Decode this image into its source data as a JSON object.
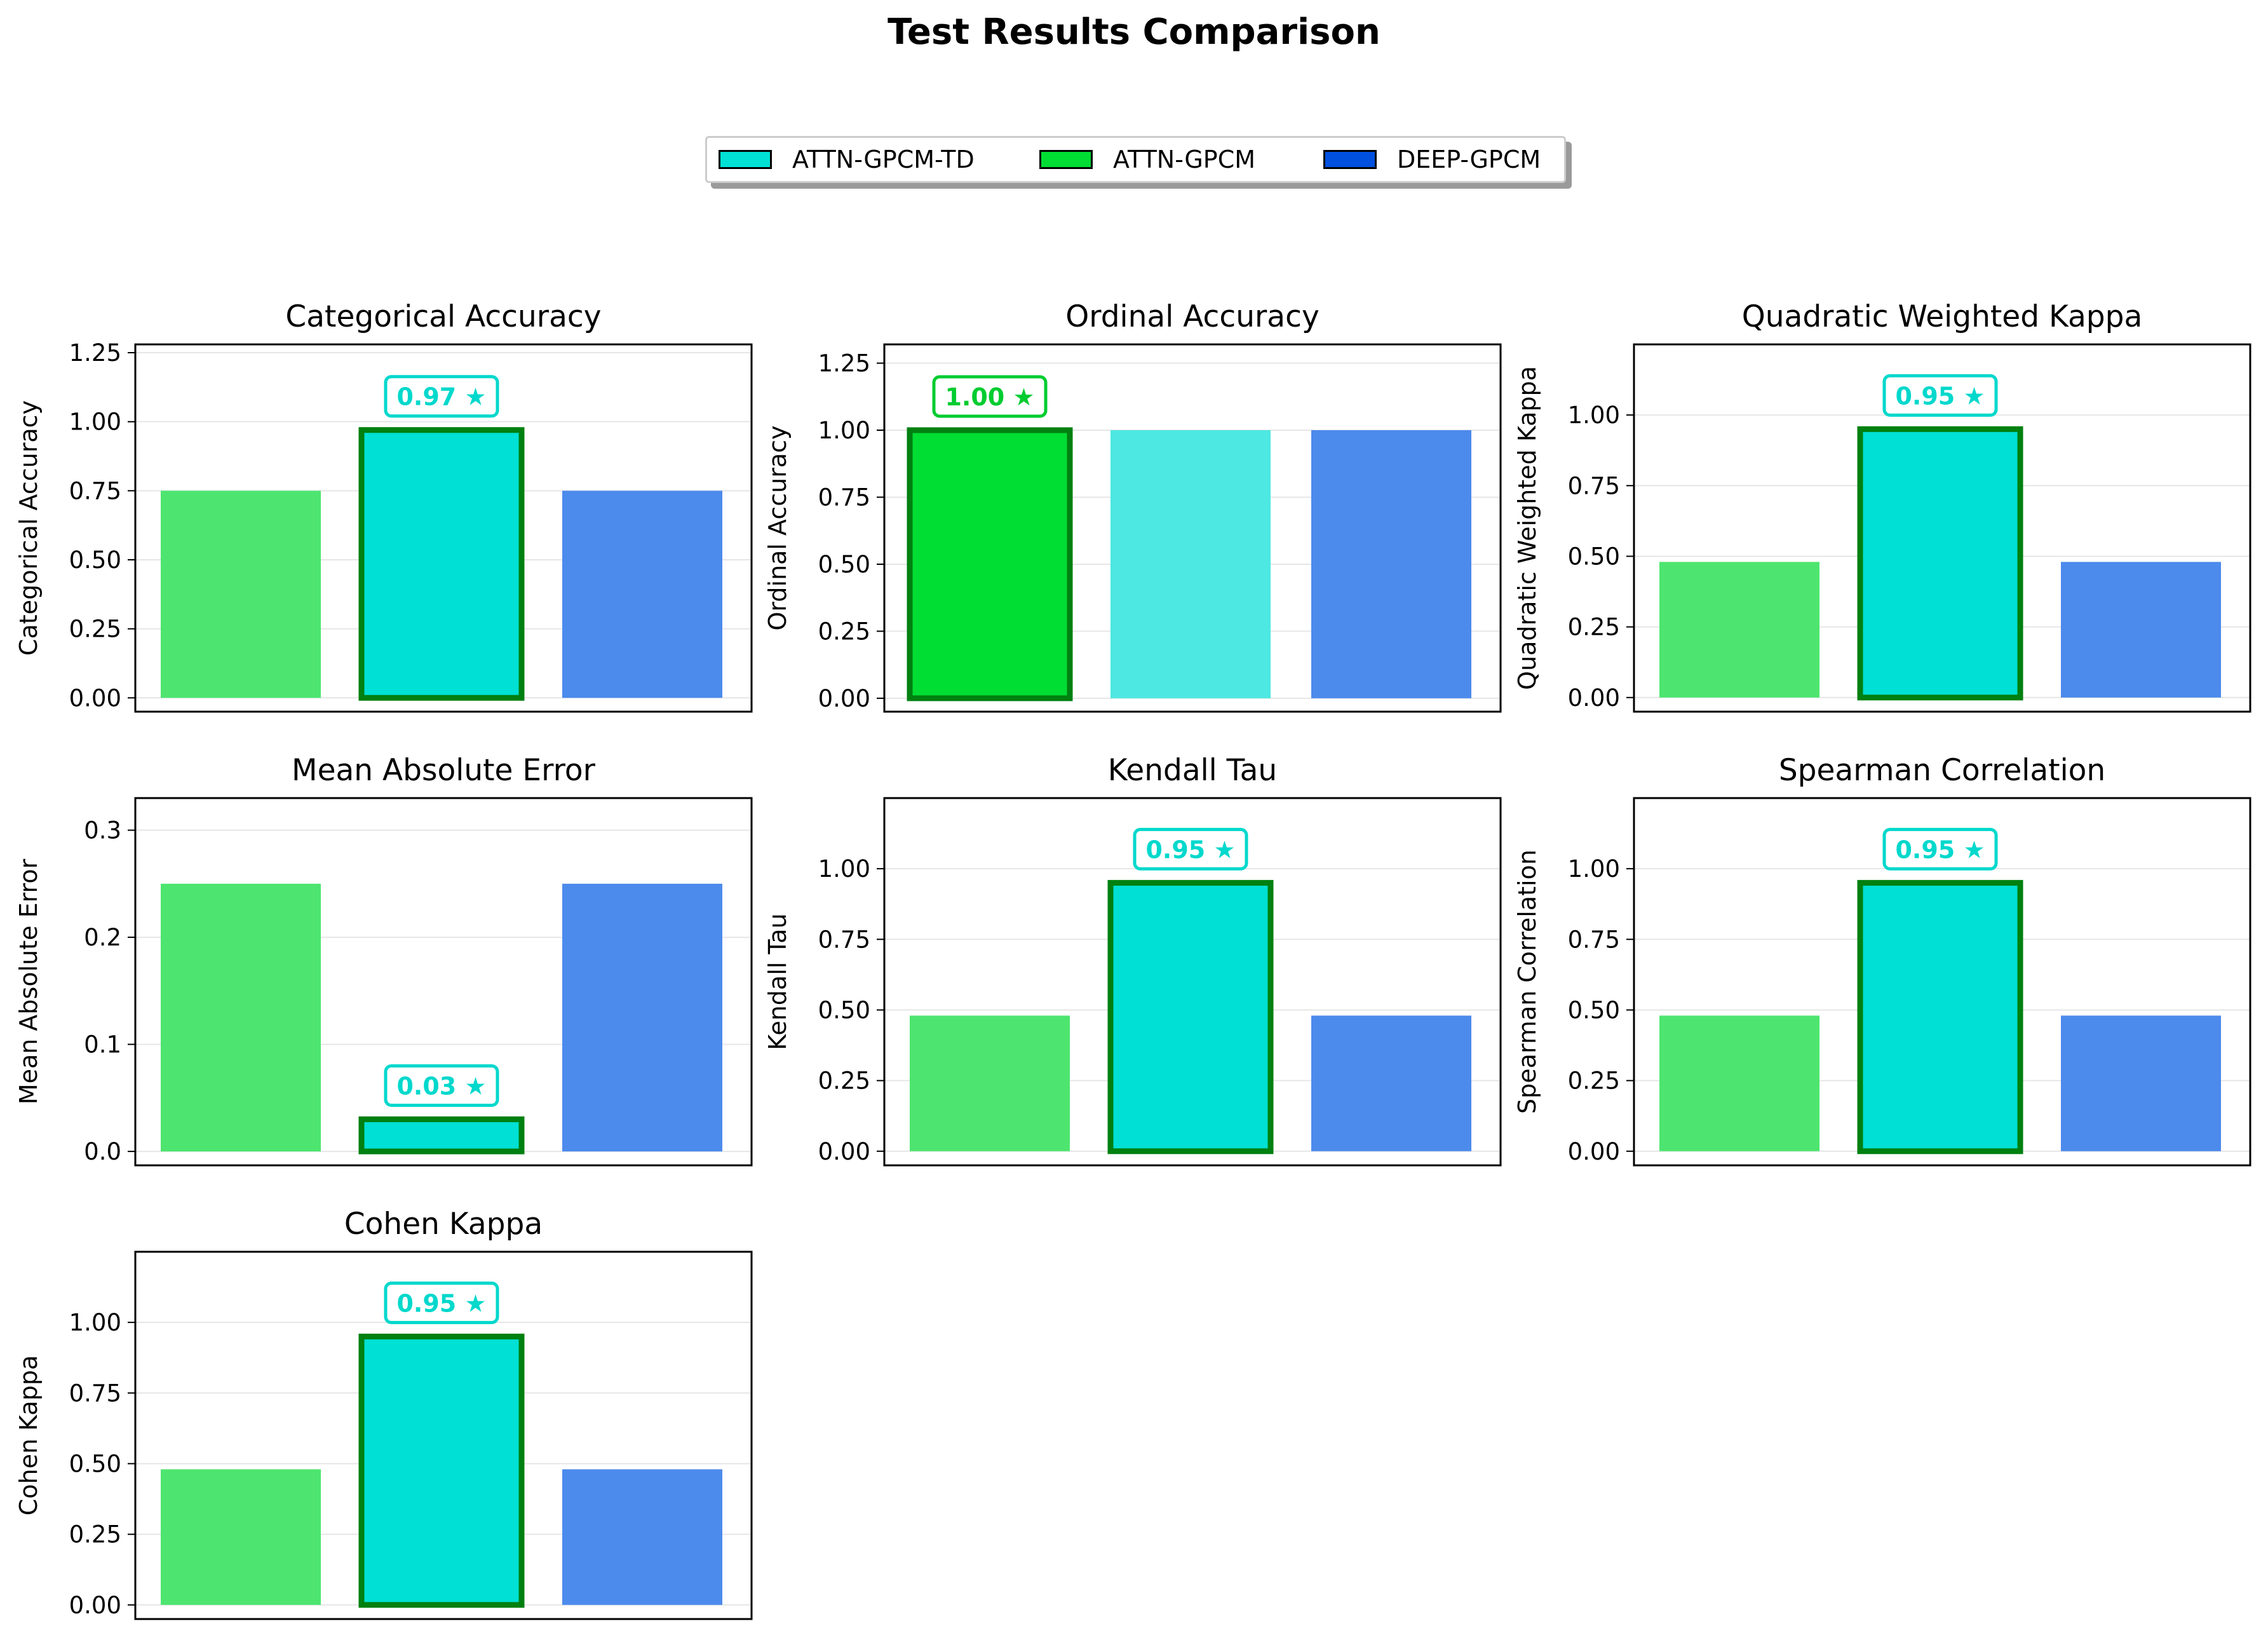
{
  "title": "Test Results Comparison",
  "legend": [
    {
      "name": "ATTN-GPCM-TD",
      "color": "#00e0d4"
    },
    {
      "name": "ATTN-GPCM",
      "color": "#00dd33"
    },
    {
      "name": "DEEP-GPCM",
      "color": "#0050e0"
    }
  ],
  "colors": {
    "ATTN-GPCM": "#4de56f",
    "ATTN-GPCM-TD": "#4de8e1",
    "DEEP-GPCM": "#4c8aec",
    "best_ATTN-GPCM-TD": "#00e0d4",
    "best_ATTN-GPCM": "#00dd33",
    "best_edge": "#008010",
    "label_ATTN-GPCM-TD": "#00d8cc",
    "label_ATTN-GPCM": "#00cc30"
  },
  "chart_data": [
    {
      "type": "bar",
      "title": "Categorical Accuracy",
      "ylabel": "Categorical Accuracy",
      "series_order": [
        "ATTN-GPCM",
        "ATTN-GPCM-TD",
        "DEEP-GPCM"
      ],
      "values": [
        0.75,
        0.97,
        0.75
      ],
      "best_index": 1,
      "best_label": "0.97 ★",
      "ylim": [
        -0.05,
        1.28
      ],
      "yticks": [
        "0.00",
        "0.25",
        "0.50",
        "0.75",
        "1.00",
        "1.25"
      ],
      "grid": true
    },
    {
      "type": "bar",
      "title": "Ordinal Accuracy",
      "ylabel": "Ordinal Accuracy",
      "series_order": [
        "ATTN-GPCM",
        "ATTN-GPCM-TD",
        "DEEP-GPCM"
      ],
      "values": [
        1.0,
        1.0,
        1.0
      ],
      "best_index": 0,
      "best_label": "1.00 ★",
      "ylim": [
        -0.05,
        1.32
      ],
      "yticks": [
        "0.00",
        "0.25",
        "0.50",
        "0.75",
        "1.00",
        "1.25"
      ],
      "grid": true
    },
    {
      "type": "bar",
      "title": "Quadratic Weighted Kappa",
      "ylabel": "Quadratic Weighted Kappa",
      "series_order": [
        "ATTN-GPCM",
        "ATTN-GPCM-TD",
        "DEEP-GPCM"
      ],
      "values": [
        0.48,
        0.95,
        0.48
      ],
      "best_index": 1,
      "best_label": "0.95 ★",
      "ylim": [
        -0.05,
        1.25
      ],
      "yticks": [
        "0.00",
        "0.25",
        "0.50",
        "0.75",
        "1.00"
      ],
      "grid": true
    },
    {
      "type": "bar",
      "title": "Mean Absolute Error",
      "ylabel": "Mean Absolute Error",
      "series_order": [
        "ATTN-GPCM",
        "ATTN-GPCM-TD",
        "DEEP-GPCM"
      ],
      "values": [
        0.25,
        0.03,
        0.25
      ],
      "best_index": 1,
      "best_label": "0.03 ★",
      "ylim": [
        -0.013,
        0.33
      ],
      "yticks": [
        "0.0",
        "0.1",
        "0.2",
        "0.3"
      ],
      "grid": true
    },
    {
      "type": "bar",
      "title": "Kendall Tau",
      "ylabel": "Kendall Tau",
      "series_order": [
        "ATTN-GPCM",
        "ATTN-GPCM-TD",
        "DEEP-GPCM"
      ],
      "values": [
        0.48,
        0.95,
        0.48
      ],
      "best_index": 1,
      "best_label": "0.95 ★",
      "ylim": [
        -0.05,
        1.25
      ],
      "yticks": [
        "0.00",
        "0.25",
        "0.50",
        "0.75",
        "1.00"
      ],
      "grid": true
    },
    {
      "type": "bar",
      "title": "Spearman Correlation",
      "ylabel": "Spearman Correlation",
      "series_order": [
        "ATTN-GPCM",
        "ATTN-GPCM-TD",
        "DEEP-GPCM"
      ],
      "values": [
        0.48,
        0.95,
        0.48
      ],
      "best_index": 1,
      "best_label": "0.95 ★",
      "ylim": [
        -0.05,
        1.25
      ],
      "yticks": [
        "0.00",
        "0.25",
        "0.50",
        "0.75",
        "1.00"
      ],
      "grid": true
    },
    {
      "type": "bar",
      "title": "Cohen Kappa",
      "ylabel": "Cohen Kappa",
      "series_order": [
        "ATTN-GPCM",
        "ATTN-GPCM-TD",
        "DEEP-GPCM"
      ],
      "values": [
        0.48,
        0.95,
        0.48
      ],
      "best_index": 1,
      "best_label": "0.95 ★",
      "ylim": [
        -0.05,
        1.25
      ],
      "yticks": [
        "0.00",
        "0.25",
        "0.50",
        "0.75",
        "1.00"
      ],
      "grid": true
    }
  ]
}
